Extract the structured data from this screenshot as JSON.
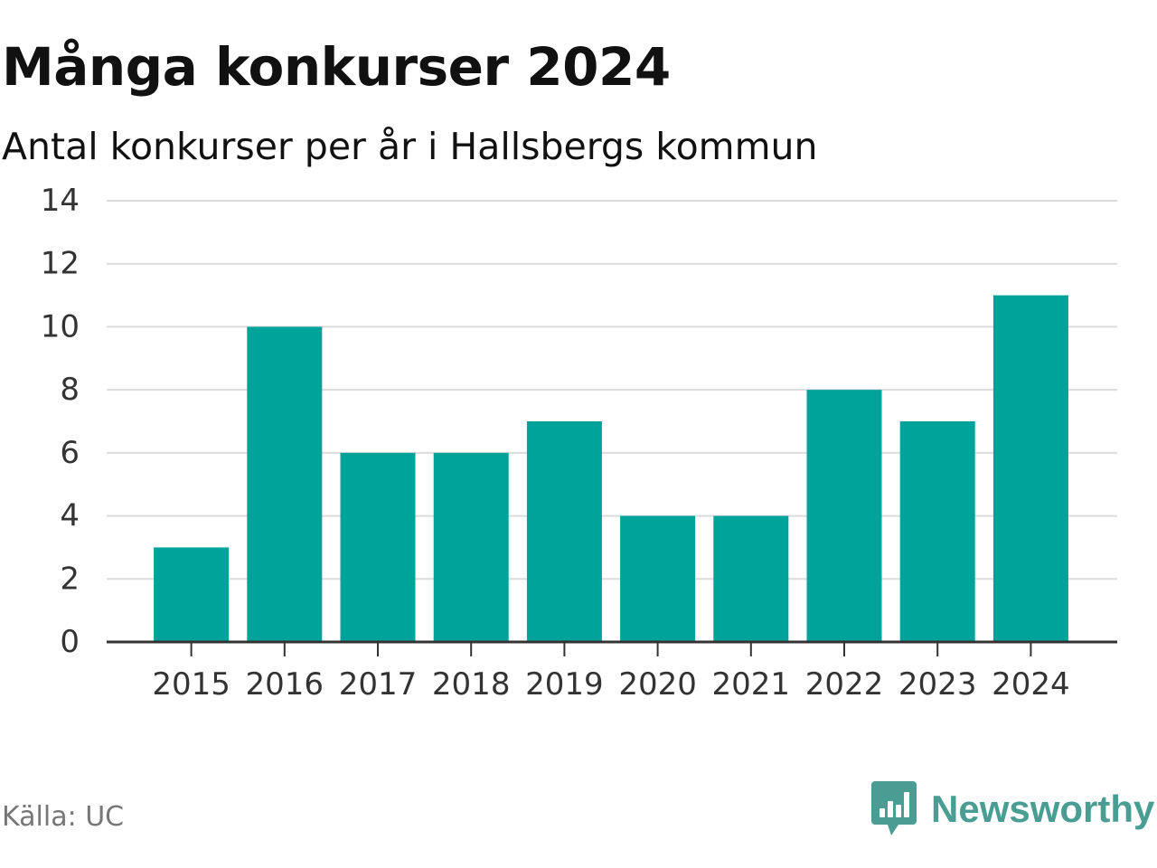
{
  "title": "Många konkurser 2024",
  "subtitle": "Antal konkurser per år i Hallsbergs kommun",
  "source": "Källa: UC",
  "brand": {
    "name": "Newsworthy",
    "icon": "newsworthy-logo-icon",
    "color": "#4a9d92"
  },
  "chart_data": {
    "type": "bar",
    "categories": [
      "2015",
      "2016",
      "2017",
      "2018",
      "2019",
      "2020",
      "2021",
      "2022",
      "2023",
      "2024"
    ],
    "values": [
      3,
      10,
      6,
      6,
      7,
      4,
      4,
      8,
      7,
      11
    ],
    "title": "Många konkurser 2024",
    "subtitle": "Antal konkurser per år i Hallsbergs kommun",
    "xlabel": "",
    "ylabel": "",
    "ylim": [
      0,
      14
    ],
    "yticks": [
      0,
      2,
      4,
      6,
      8,
      10,
      12,
      14
    ],
    "grid": "horizontal",
    "legend": "none",
    "bar_color": "#00a39a"
  }
}
